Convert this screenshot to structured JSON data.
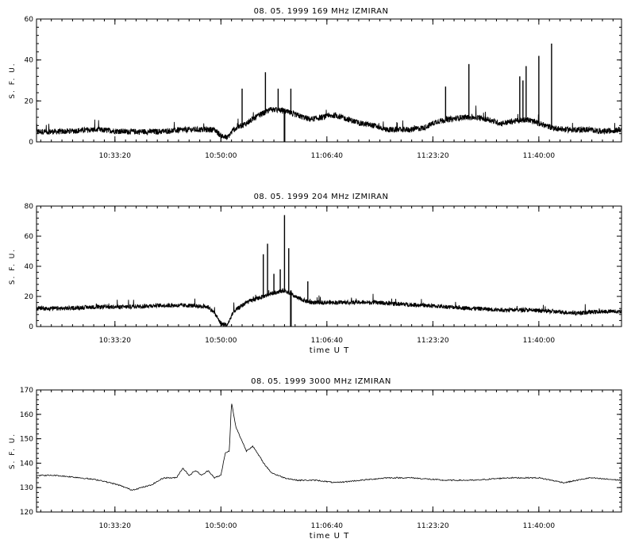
{
  "chart_data": [
    {
      "type": "line",
      "title": "08. 05. 1999    169 MHz    IZMIRAN",
      "ylabel": "S. F. U.",
      "xlabel": "",
      "ylim": [
        0,
        60
      ],
      "yticks": [
        0,
        20,
        40,
        60
      ],
      "xlim": [
        "10:21:00",
        "11:53:00"
      ],
      "xticks": [
        "10:33:20",
        "10:50:00",
        "11:06:40",
        "11:23:20",
        "11:40:00"
      ],
      "grid": false,
      "series": [
        {
          "x": [
            "10:21:00",
            "10:25:00",
            "10:30:00",
            "10:35:00",
            "10:40:00",
            "10:45:00",
            "10:49:00",
            "10:50:00",
            "10:51:00",
            "10:52:00",
            "10:54:00",
            "10:56:00",
            "10:58:00",
            "11:00:00",
            "11:02:00",
            "11:04:00",
            "11:06:00",
            "11:08:00",
            "11:10:00",
            "11:12:00",
            "11:14:00",
            "11:16:00",
            "11:18:00",
            "11:20:00",
            "11:22:00",
            "11:24:00",
            "11:26:00",
            "11:28:00",
            "11:30:00",
            "11:32:00",
            "11:34:00",
            "11:36:00",
            "11:38:00",
            "11:40:00",
            "11:42:00",
            "11:44:00",
            "11:46:00",
            "11:48:00",
            "11:50:00",
            "11:53:00"
          ],
          "values": [
            5,
            5,
            6,
            5,
            5,
            6,
            6,
            3,
            2,
            6,
            9,
            13,
            16,
            15,
            13,
            11,
            12,
            13,
            11,
            9,
            8,
            6,
            6,
            6,
            7,
            10,
            11,
            12,
            12,
            11,
            9,
            10,
            11,
            9,
            7,
            6,
            6,
            6,
            5,
            6
          ],
          "spikes": [
            {
              "x": "10:53:20",
              "y": 26
            },
            {
              "x": "10:57:00",
              "y": 34
            },
            {
              "x": "10:59:00",
              "y": 26
            },
            {
              "x": "11:01:00",
              "y": 26
            },
            {
              "x": "11:25:20",
              "y": 27
            },
            {
              "x": "11:29:00",
              "y": 38
            },
            {
              "x": "11:37:00",
              "y": 32
            },
            {
              "x": "11:37:30",
              "y": 30
            },
            {
              "x": "11:38:00",
              "y": 37
            },
            {
              "x": "11:40:00",
              "y": 42
            },
            {
              "x": "11:42:00",
              "y": 48
            }
          ],
          "dips": [
            {
              "x": "11:00:00",
              "y": 0
            }
          ]
        }
      ]
    },
    {
      "type": "line",
      "title": "08. 05. 1999    204 MHz    IZMIRAN",
      "ylabel": "S. F. U.",
      "xlabel": "time  U T",
      "ylim": [
        0,
        80
      ],
      "yticks": [
        0,
        20,
        40,
        60,
        80
      ],
      "xlim": [
        "10:21:00",
        "11:53:00"
      ],
      "xticks": [
        "10:33:20",
        "10:50:00",
        "11:06:40",
        "11:23:20",
        "11:40:00"
      ],
      "grid": false,
      "series": [
        {
          "x": [
            "10:21:00",
            "10:25:00",
            "10:30:00",
            "10:35:00",
            "10:40:00",
            "10:45:00",
            "10:48:00",
            "10:49:00",
            "10:50:00",
            "10:51:00",
            "10:52:00",
            "10:54:00",
            "10:56:00",
            "10:58:00",
            "11:00:00",
            "11:02:00",
            "11:04:00",
            "11:06:00",
            "11:08:00",
            "11:10:00",
            "11:14:00",
            "11:18:00",
            "11:22:00",
            "11:26:00",
            "11:30:00",
            "11:34:00",
            "11:38:00",
            "11:42:00",
            "11:46:00",
            "11:50:00",
            "11:53:00"
          ],
          "values": [
            12,
            12,
            13,
            13,
            14,
            14,
            13,
            9,
            2,
            1,
            10,
            16,
            19,
            22,
            24,
            19,
            16,
            16,
            16,
            16,
            16,
            15,
            14,
            13,
            12,
            11,
            11,
            10,
            9,
            10,
            10
          ],
          "spikes": [
            {
              "x": "10:56:40",
              "y": 48
            },
            {
              "x": "10:57:20",
              "y": 55
            },
            {
              "x": "10:58:20",
              "y": 35
            },
            {
              "x": "10:59:20",
              "y": 38
            },
            {
              "x": "11:00:00",
              "y": 74
            },
            {
              "x": "11:00:40",
              "y": 52
            },
            {
              "x": "11:03:40",
              "y": 30
            }
          ],
          "dips": [
            {
              "x": "11:01:00",
              "y": 0
            }
          ]
        }
      ]
    },
    {
      "type": "line",
      "title": "08. 05. 1999    3000 MHz    IZMIRAN",
      "ylabel": "S. F. U.",
      "xlabel": "time  U T",
      "ylim": [
        120,
        170
      ],
      "yticks": [
        120,
        130,
        140,
        150,
        160,
        170
      ],
      "xlim": [
        "10:21:00",
        "11:53:00"
      ],
      "xticks": [
        "10:33:20",
        "10:50:00",
        "11:06:40",
        "11:23:20",
        "11:40:00"
      ],
      "grid": false,
      "series": [
        {
          "x": [
            "10:21:00",
            "10:24:00",
            "10:28:00",
            "10:31:00",
            "10:34:00",
            "10:36:00",
            "10:39:00",
            "10:41:00",
            "10:43:00",
            "10:44:00",
            "10:45:00",
            "10:46:00",
            "10:47:00",
            "10:48:00",
            "10:49:00",
            "10:50:00",
            "10:50:40",
            "10:51:20",
            "10:51:40",
            "10:52:20",
            "10:53:00",
            "10:54:00",
            "10:55:00",
            "10:56:00",
            "10:57:00",
            "10:58:00",
            "10:59:00",
            "11:00:00",
            "11:02:00",
            "11:05:00",
            "11:08:00",
            "11:12:00",
            "11:16:00",
            "11:20:00",
            "11:25:00",
            "11:30:00",
            "11:35:00",
            "11:40:00",
            "11:44:00",
            "11:48:00",
            "11:53:00"
          ],
          "values": [
            135,
            135,
            134,
            133,
            131,
            129,
            131,
            134,
            134,
            138,
            135,
            137,
            135,
            137,
            134,
            135,
            144,
            145,
            165,
            155,
            151,
            145,
            147,
            143,
            139,
            136,
            135,
            134,
            133,
            133,
            132,
            133,
            134,
            134,
            133,
            133,
            134,
            134,
            132,
            134,
            133
          ]
        }
      ]
    }
  ]
}
